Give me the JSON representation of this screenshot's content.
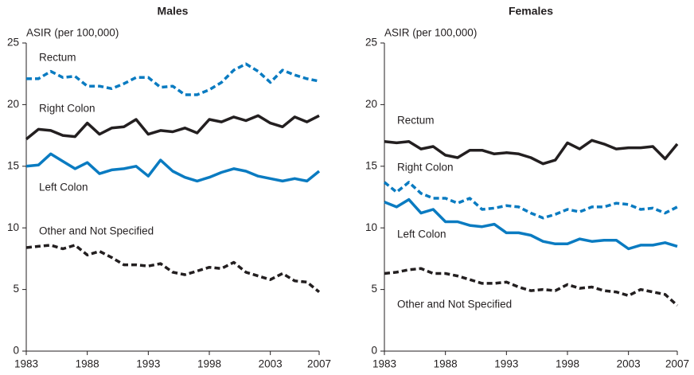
{
  "chart_data": [
    {
      "type": "line",
      "title": "Males",
      "y_label": "ASIR (per 100,000)",
      "x": [
        1983,
        1984,
        1985,
        1986,
        1987,
        1988,
        1989,
        1990,
        1991,
        1992,
        1993,
        1994,
        1995,
        1996,
        1997,
        1998,
        1999,
        2000,
        2001,
        2002,
        2003,
        2004,
        2005,
        2006,
        2007
      ],
      "xlim": [
        1983,
        2007
      ],
      "xticks": [
        1983,
        1988,
        1993,
        1998,
        2003,
        2007
      ],
      "ylim": [
        0,
        25
      ],
      "yticks": [
        0,
        5,
        10,
        15,
        20,
        25
      ],
      "series": [
        {
          "name": "Rectum",
          "color": "#0a7bc1",
          "dashed": true,
          "values": [
            22.1,
            22.1,
            22.7,
            22.2,
            22.3,
            21.5,
            21.5,
            21.3,
            21.7,
            22.2,
            22.2,
            21.4,
            21.5,
            20.8,
            20.8,
            21.2,
            21.8,
            22.8,
            23.3,
            22.7,
            21.8,
            22.8,
            22.4,
            22.1,
            21.9
          ]
        },
        {
          "name": "Right Colon",
          "color": "#231f20",
          "dashed": false,
          "values": [
            17.2,
            18.0,
            17.9,
            17.5,
            17.4,
            18.5,
            17.6,
            18.1,
            18.2,
            18.8,
            17.6,
            17.9,
            17.8,
            18.1,
            17.7,
            18.8,
            18.6,
            19.0,
            18.7,
            19.1,
            18.5,
            18.2,
            19.0,
            18.6,
            19.1
          ]
        },
        {
          "name": "Left Colon",
          "color": "#0a7bc1",
          "dashed": false,
          "values": [
            15.0,
            15.1,
            16.0,
            15.4,
            14.8,
            15.3,
            14.4,
            14.7,
            14.8,
            15.0,
            14.2,
            15.5,
            14.6,
            14.1,
            13.8,
            14.1,
            14.5,
            14.8,
            14.6,
            14.2,
            14.0,
            13.8,
            14.0,
            13.8,
            14.6
          ]
        },
        {
          "name": "Other and Not Specified",
          "color": "#231f20",
          "dashed": true,
          "values": [
            8.4,
            8.5,
            8.6,
            8.3,
            8.6,
            7.8,
            8.1,
            7.6,
            7.0,
            7.0,
            6.9,
            7.1,
            6.4,
            6.2,
            6.5,
            6.8,
            6.7,
            7.2,
            6.4,
            6.1,
            5.8,
            6.3,
            5.7,
            5.6,
            4.8
          ]
        }
      ]
    },
    {
      "type": "line",
      "title": "Females",
      "y_label": "ASIR (per 100,000)",
      "x": [
        1983,
        1984,
        1985,
        1986,
        1987,
        1988,
        1989,
        1990,
        1991,
        1992,
        1993,
        1994,
        1995,
        1996,
        1997,
        1998,
        1999,
        2000,
        2001,
        2002,
        2003,
        2004,
        2005,
        2006,
        2007
      ],
      "xlim": [
        1983,
        2007
      ],
      "xticks": [
        1983,
        1988,
        1993,
        1998,
        2003,
        2007
      ],
      "ylim": [
        0,
        25
      ],
      "yticks": [
        0,
        5,
        10,
        15,
        20,
        25
      ],
      "series": [
        {
          "name": "Right Colon",
          "color": "#231f20",
          "dashed": false,
          "values": [
            17.0,
            16.9,
            17.0,
            16.4,
            16.6,
            15.9,
            15.7,
            16.3,
            16.3,
            16.0,
            16.1,
            16.0,
            15.7,
            15.2,
            15.5,
            16.9,
            16.4,
            17.1,
            16.8,
            16.4,
            16.5,
            16.5,
            16.6,
            15.6,
            16.8
          ]
        },
        {
          "name": "Rectum",
          "color": "#0a7bc1",
          "dashed": true,
          "values": [
            13.7,
            12.9,
            13.7,
            12.8,
            12.4,
            12.4,
            12.0,
            12.4,
            11.5,
            11.6,
            11.8,
            11.7,
            11.2,
            10.8,
            11.1,
            11.5,
            11.3,
            11.7,
            11.7,
            12.0,
            11.9,
            11.5,
            11.6,
            11.2,
            11.7
          ]
        },
        {
          "name": "Left Colon",
          "color": "#0a7bc1",
          "dashed": false,
          "values": [
            12.1,
            11.7,
            12.3,
            11.2,
            11.5,
            10.5,
            10.5,
            10.2,
            10.1,
            10.3,
            9.6,
            9.6,
            9.4,
            8.9,
            8.7,
            8.7,
            9.1,
            8.9,
            9.0,
            9.0,
            8.3,
            8.6,
            8.6,
            8.8,
            8.5
          ]
        },
        {
          "name": "Other and Not Specified",
          "color": "#231f20",
          "dashed": true,
          "values": [
            6.3,
            6.4,
            6.6,
            6.7,
            6.3,
            6.3,
            6.1,
            5.8,
            5.5,
            5.5,
            5.6,
            5.2,
            4.9,
            5.0,
            4.9,
            5.4,
            5.1,
            5.2,
            4.9,
            4.8,
            4.5,
            5.0,
            4.8,
            4.6,
            3.7
          ]
        }
      ]
    }
  ]
}
